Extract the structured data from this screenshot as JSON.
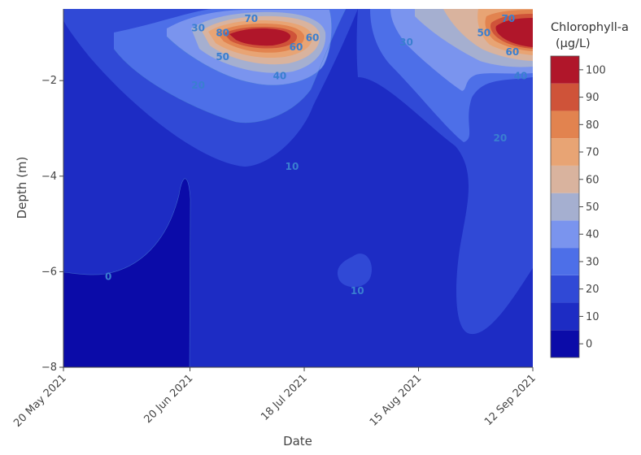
{
  "chart_data": {
    "type": "heatmap",
    "subtype": "filled-contour",
    "xlabel": "Date",
    "ylabel": "Depth (m)",
    "x_ticks": [
      "20 May 2021",
      "20 Jun 2021",
      "18 Jul 2021",
      "15 Aug 2021",
      "12 Sep 2021"
    ],
    "x_range": [
      "2021-05-20",
      "2021-09-12"
    ],
    "y_ticks": [
      -2,
      -4,
      -6,
      -8
    ],
    "y_range": [
      -8,
      -0.5
    ],
    "colorbar": {
      "title": "Chlorophyll-a (μg/L)",
      "title_lines": [
        "Chlorophyll-a",
        "(μg/L)"
      ],
      "ticks": [
        0,
        10,
        20,
        30,
        40,
        50,
        60,
        70,
        80,
        90,
        100
      ],
      "levels": [
        {
          "min": -5,
          "max": 5,
          "color": "#0b0ba8"
        },
        {
          "min": 5,
          "max": 15,
          "color": "#1d2cc4"
        },
        {
          "min": 15,
          "max": 25,
          "color": "#3049d6"
        },
        {
          "min": 25,
          "max": 35,
          "color": "#4d6fe8"
        },
        {
          "min": 35,
          "max": 45,
          "color": "#7a94ee"
        },
        {
          "min": 45,
          "max": 55,
          "color": "#a5afd0"
        },
        {
          "min": 55,
          "max": 65,
          "color": "#d9b39e"
        },
        {
          "min": 65,
          "max": 75,
          "color": "#e8a474"
        },
        {
          "min": 75,
          "max": 85,
          "color": "#e2834f"
        },
        {
          "min": 85,
          "max": 95,
          "color": "#cf5339"
        },
        {
          "min": 95,
          "max": 105,
          "color": "#b0162a"
        }
      ]
    },
    "contour_labels": [
      {
        "text": "70",
        "date": "2021-07-05",
        "depth": -0.7
      },
      {
        "text": "80",
        "date": "2021-06-28",
        "depth": -1.0
      },
      {
        "text": "30",
        "date": "2021-06-22",
        "depth": -0.9
      },
      {
        "text": "50",
        "date": "2021-06-28",
        "depth": -1.5
      },
      {
        "text": "60",
        "date": "2021-07-16",
        "depth": -1.3
      },
      {
        "text": "60",
        "date": "2021-07-20",
        "depth": -1.1
      },
      {
        "text": "40",
        "date": "2021-07-12",
        "depth": -1.9
      },
      {
        "text": "20",
        "date": "2021-06-22",
        "depth": -2.1
      },
      {
        "text": "10",
        "date": "2021-07-15",
        "depth": -3.8
      },
      {
        "text": "0",
        "date": "2021-05-31",
        "depth": -6.1
      },
      {
        "text": "10",
        "date": "2021-07-31",
        "depth": -6.4
      },
      {
        "text": "30",
        "date": "2021-08-12",
        "depth": -1.2
      },
      {
        "text": "50",
        "date": "2021-08-31",
        "depth": -1.0
      },
      {
        "text": "70",
        "date": "2021-09-06",
        "depth": -0.7
      },
      {
        "text": "60",
        "date": "2021-09-07",
        "depth": -1.4
      },
      {
        "text": "40",
        "date": "2021-09-09",
        "depth": -1.9
      },
      {
        "text": "20",
        "date": "2021-09-04",
        "depth": -3.2
      }
    ],
    "colors": {
      "label_color": "#3a7fd0",
      "plot_background": "#0b0ba8"
    }
  }
}
